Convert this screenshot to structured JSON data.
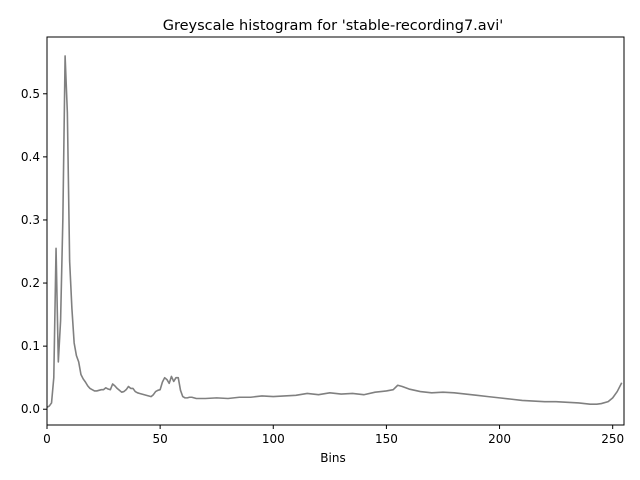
{
  "chart_data": {
    "type": "line",
    "title": "Greyscale histogram for 'stable-recording7.avi'",
    "xlabel": "Bins",
    "ylabel": "",
    "xlim": [
      0,
      255
    ],
    "ylim": [
      -0.025,
      0.59
    ],
    "xticks": [
      0,
      50,
      100,
      150,
      200,
      250
    ],
    "yticks": [
      0.0,
      0.1,
      0.2,
      0.3,
      0.4,
      0.5
    ],
    "ytick_labels": [
      "0.0",
      "0.1",
      "0.2",
      "0.3",
      "0.4",
      "0.5"
    ],
    "grid": false,
    "legend": "none",
    "line_color": "#808080",
    "series": [
      {
        "x": [
          0,
          1,
          2,
          3,
          4,
          5,
          6,
          7,
          8,
          9,
          10,
          11,
          12,
          13,
          14,
          15,
          16,
          17,
          18,
          19,
          20,
          21,
          22,
          23,
          24,
          25,
          26,
          27,
          28,
          29,
          30,
          31,
          32,
          33,
          34,
          35,
          36,
          37,
          38,
          39,
          40,
          41,
          42,
          43,
          44,
          45,
          46,
          47,
          48,
          49,
          50,
          51,
          52,
          53,
          54,
          55,
          56,
          57,
          58,
          59,
          60,
          61,
          62,
          63,
          64,
          65,
          66,
          67,
          68,
          69,
          70,
          75,
          80,
          85,
          90,
          95,
          100,
          105,
          110,
          115,
          120,
          125,
          130,
          135,
          140,
          145,
          150,
          153,
          155,
          157,
          160,
          165,
          170,
          175,
          180,
          185,
          190,
          195,
          200,
          205,
          210,
          215,
          220,
          225,
          230,
          235,
          240,
          243,
          245,
          248,
          250,
          252,
          254
        ],
        "y": [
          0.003,
          0.005,
          0.01,
          0.05,
          0.255,
          0.075,
          0.14,
          0.3,
          0.56,
          0.47,
          0.235,
          0.16,
          0.105,
          0.085,
          0.075,
          0.055,
          0.048,
          0.043,
          0.037,
          0.033,
          0.031,
          0.029,
          0.029,
          0.03,
          0.031,
          0.031,
          0.034,
          0.032,
          0.031,
          0.04,
          0.037,
          0.033,
          0.03,
          0.027,
          0.028,
          0.031,
          0.036,
          0.033,
          0.033,
          0.028,
          0.026,
          0.025,
          0.024,
          0.023,
          0.022,
          0.021,
          0.02,
          0.023,
          0.028,
          0.03,
          0.031,
          0.043,
          0.05,
          0.047,
          0.041,
          0.052,
          0.044,
          0.05,
          0.05,
          0.03,
          0.02,
          0.018,
          0.018,
          0.019,
          0.019,
          0.018,
          0.017,
          0.017,
          0.017,
          0.017,
          0.017,
          0.018,
          0.017,
          0.019,
          0.019,
          0.021,
          0.02,
          0.021,
          0.022,
          0.025,
          0.023,
          0.026,
          0.024,
          0.025,
          0.023,
          0.027,
          0.029,
          0.031,
          0.038,
          0.036,
          0.032,
          0.028,
          0.026,
          0.027,
          0.026,
          0.024,
          0.022,
          0.02,
          0.018,
          0.016,
          0.014,
          0.013,
          0.012,
          0.012,
          0.011,
          0.01,
          0.008,
          0.008,
          0.009,
          0.012,
          0.018,
          0.028,
          0.042
        ]
      }
    ]
  }
}
